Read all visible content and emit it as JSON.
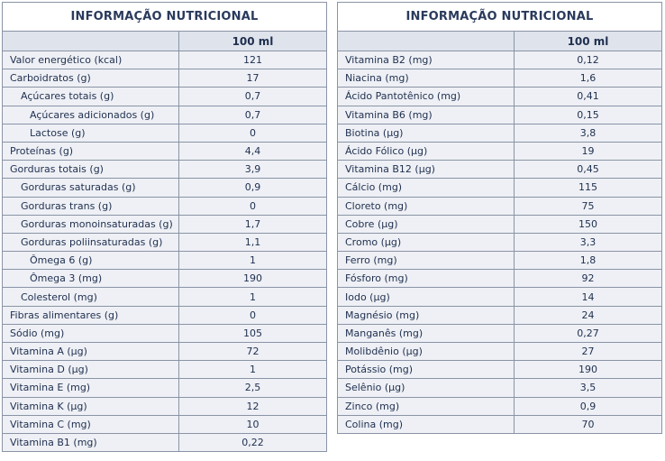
{
  "left": {
    "title": "INFORMAÇÃO NUTRICIONAL",
    "column_header": "100 ml",
    "rows": [
      {
        "label": "Valor energético (kcal)",
        "value": "121",
        "indent": 0
      },
      {
        "label": "Carboidratos (g)",
        "value": "17",
        "indent": 0
      },
      {
        "label": "Açúcares totais (g)",
        "value": "0,7",
        "indent": 1
      },
      {
        "label": "Açúcares adicionados (g)",
        "value": "0,7",
        "indent": 2
      },
      {
        "label": "Lactose (g)",
        "value": "0",
        "indent": 2
      },
      {
        "label": "Proteínas (g)",
        "value": "4,4",
        "indent": 0
      },
      {
        "label": "Gorduras totais (g)",
        "value": "3,9",
        "indent": 0
      },
      {
        "label": "Gorduras saturadas (g)",
        "value": "0,9",
        "indent": 1
      },
      {
        "label": "Gorduras trans (g)",
        "value": "0",
        "indent": 1
      },
      {
        "label": "Gorduras monoinsaturadas (g)",
        "value": "1,7",
        "indent": 1
      },
      {
        "label": "Gorduras poliinsaturadas (g)",
        "value": "1,1",
        "indent": 1
      },
      {
        "label": "Ômega 6 (g)",
        "value": "1",
        "indent": 2
      },
      {
        "label": "Ômega 3 (mg)",
        "value": "190",
        "indent": 2
      },
      {
        "label": "Colesterol (mg)",
        "value": "1",
        "indent": 1
      },
      {
        "label": "Fibras alimentares (g)",
        "value": "0",
        "indent": 0
      },
      {
        "label": "Sódio (mg)",
        "value": "105",
        "indent": 0
      },
      {
        "label": "Vitamina A (µg)",
        "value": "72",
        "indent": 0
      },
      {
        "label": "Vitamina D (µg)",
        "value": "1",
        "indent": 0
      },
      {
        "label": "Vitamina E (mg)",
        "value": "2,5",
        "indent": 0
      },
      {
        "label": "Vitamina K (µg)",
        "value": "12",
        "indent": 0
      },
      {
        "label": "Vitamina C (mg)",
        "value": "10",
        "indent": 0
      },
      {
        "label": "Vitamina B1 (mg)",
        "value": "0,22",
        "indent": 0
      }
    ]
  },
  "right": {
    "title": "INFORMAÇÃO NUTRICIONAL",
    "column_header": "100 ml",
    "rows": [
      {
        "label": "Vitamina B2 (mg)",
        "value": "0,12",
        "indent": 0
      },
      {
        "label": "Niacina (mg)",
        "value": "1,6",
        "indent": 0
      },
      {
        "label": "Ácido Pantotênico (mg)",
        "value": "0,41",
        "indent": 0
      },
      {
        "label": "Vitamina B6 (mg)",
        "value": "0,15",
        "indent": 0
      },
      {
        "label": "Biotina (µg)",
        "value": "3,8",
        "indent": 0
      },
      {
        "label": "Ácido Fólico (µg)",
        "value": "19",
        "indent": 0
      },
      {
        "label": "Vitamina B12 (µg)",
        "value": "0,45",
        "indent": 0
      },
      {
        "label": "Cálcio (mg)",
        "value": "115",
        "indent": 0
      },
      {
        "label": "Cloreto (mg)",
        "value": "75",
        "indent": 0
      },
      {
        "label": "Cobre (µg)",
        "value": "150",
        "indent": 0
      },
      {
        "label": "Cromo (µg)",
        "value": "3,3",
        "indent": 0
      },
      {
        "label": "Ferro (mg)",
        "value": "1,8",
        "indent": 0
      },
      {
        "label": "Fósforo (mg)",
        "value": "92",
        "indent": 0
      },
      {
        "label": "Iodo (µg)",
        "value": "14",
        "indent": 0
      },
      {
        "label": "Magnésio (mg)",
        "value": "24",
        "indent": 0
      },
      {
        "label": "Manganês (mg)",
        "value": "0,27",
        "indent": 0
      },
      {
        "label": "Molibdênio (µg)",
        "value": "27",
        "indent": 0
      },
      {
        "label": "Potássio (mg)",
        "value": "190",
        "indent": 0
      },
      {
        "label": "Selênio (µg)",
        "value": "3,5",
        "indent": 0
      },
      {
        "label": "Zinco (mg)",
        "value": "0,9",
        "indent": 0
      },
      {
        "label": "Colina (mg)",
        "value": "70",
        "indent": 0
      }
    ]
  }
}
